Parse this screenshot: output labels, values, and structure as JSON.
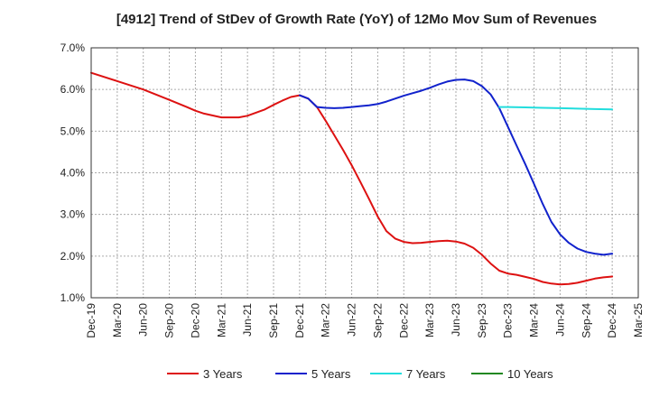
{
  "chart_data": {
    "type": "line",
    "title": "[4912]  Trend of StDev of Growth Rate (YoY) of 12Mo Mov Sum of Revenues",
    "xlabel": "",
    "ylabel": "",
    "ylim": [
      1.0,
      7.0
    ],
    "y_ticks": [
      1.0,
      2.0,
      3.0,
      4.0,
      5.0,
      6.0,
      7.0
    ],
    "y_tick_labels": [
      "1.0%",
      "2.0%",
      "3.0%",
      "4.0%",
      "5.0%",
      "6.0%",
      "7.0%"
    ],
    "x_tick_labels": [
      "Dec-19",
      "Mar-20",
      "Jun-20",
      "Sep-20",
      "Dec-20",
      "Mar-21",
      "Jun-21",
      "Sep-21",
      "Dec-21",
      "Mar-22",
      "Jun-22",
      "Sep-22",
      "Dec-22",
      "Mar-23",
      "Jun-23",
      "Sep-23",
      "Dec-23",
      "Mar-24",
      "Jun-24",
      "Sep-24",
      "Dec-24",
      "Mar-25"
    ],
    "x_index_note": "x values are month offsets from Dec-19 (3 per tick)",
    "grid": true,
    "legend_position": "bottom",
    "series": [
      {
        "name": "3 Years",
        "color": "#dd1111",
        "x": [
          0,
          3,
          6,
          9,
          11,
          12,
          13,
          15,
          17,
          18,
          20,
          21,
          22,
          23,
          24,
          25,
          26,
          27,
          28,
          29,
          30,
          31,
          32,
          33,
          34,
          35,
          36,
          37,
          38,
          39,
          40,
          41,
          42,
          43,
          44,
          45,
          46,
          47,
          48,
          49,
          50,
          51,
          52,
          53,
          54,
          55,
          56,
          57,
          58,
          59,
          60
        ],
        "values": [
          6.4,
          6.2,
          6.0,
          5.75,
          5.58,
          5.49,
          5.42,
          5.33,
          5.33,
          5.37,
          5.52,
          5.63,
          5.73,
          5.82,
          5.86,
          5.78,
          5.58,
          5.25,
          4.9,
          4.55,
          4.18,
          3.78,
          3.37,
          2.95,
          2.6,
          2.42,
          2.34,
          2.31,
          2.32,
          2.34,
          2.36,
          2.37,
          2.35,
          2.3,
          2.2,
          2.03,
          1.82,
          1.65,
          1.58,
          1.55,
          1.5,
          1.45,
          1.38,
          1.34,
          1.32,
          1.33,
          1.36,
          1.41,
          1.46,
          1.49,
          1.51
        ]
      },
      {
        "name": "5 Years",
        "color": "#1122cc",
        "x": [
          24,
          25,
          26,
          27,
          28,
          29,
          30,
          31,
          32,
          33,
          34,
          35,
          36,
          37,
          38,
          39,
          40,
          41,
          42,
          43,
          44,
          45,
          46,
          47,
          48,
          49,
          50,
          51,
          52,
          53,
          54,
          55,
          56,
          57,
          58,
          59,
          60
        ],
        "values": [
          5.86,
          5.78,
          5.58,
          5.56,
          5.55,
          5.56,
          5.58,
          5.6,
          5.62,
          5.65,
          5.71,
          5.78,
          5.85,
          5.91,
          5.97,
          6.04,
          6.12,
          6.19,
          6.23,
          6.24,
          6.2,
          6.08,
          5.88,
          5.55,
          5.1,
          4.65,
          4.2,
          3.73,
          3.25,
          2.82,
          2.52,
          2.32,
          2.18,
          2.1,
          2.06,
          2.03,
          2.06
        ]
      },
      {
        "name": "7 Years",
        "color": "#22dddd",
        "x": [
          47,
          48,
          50,
          52,
          54,
          56,
          58,
          60
        ],
        "values": [
          5.58,
          5.58,
          5.57,
          5.56,
          5.55,
          5.54,
          5.53,
          5.52
        ]
      },
      {
        "name": "10 Years",
        "color": "#228822",
        "x": [],
        "values": []
      }
    ]
  }
}
